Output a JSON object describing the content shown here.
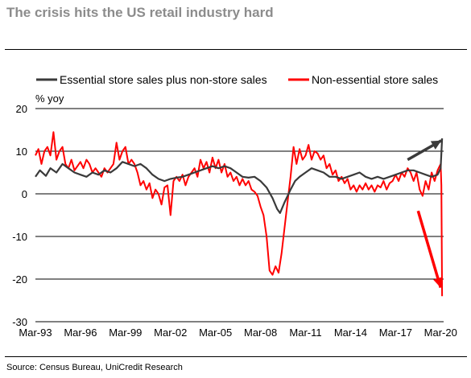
{
  "title": "The crisis hits the US retail industry hard",
  "source": "Source: Census Bureau, UniCredit Research",
  "colors": {
    "essential": "#3a3a3a",
    "non_essential": "#ff0000",
    "grid": "#000000"
  },
  "chart_data": {
    "type": "line",
    "ylabel": "% yoy",
    "ylim": [
      -30,
      20
    ],
    "yticks": [
      20,
      10,
      0,
      -10,
      -20,
      -30
    ],
    "xlim": [
      1993.0,
      2020.2
    ],
    "xticks": [
      {
        "x": 1993.0,
        "label": "Mar-93"
      },
      {
        "x": 1996.0,
        "label": "Mar-96"
      },
      {
        "x": 1999.0,
        "label": "Mar-99"
      },
      {
        "x": 2002.0,
        "label": "Mar-02"
      },
      {
        "x": 2005.0,
        "label": "Mar-05"
      },
      {
        "x": 2008.0,
        "label": "Mar-08"
      },
      {
        "x": 2011.0,
        "label": "Mar-11"
      },
      {
        "x": 2014.0,
        "label": "Mar-14"
      },
      {
        "x": 2017.0,
        "label": "Mar-17"
      },
      {
        "x": 2020.0,
        "label": "Mar-20"
      }
    ],
    "grid": "horizontal",
    "legend_position": "top",
    "series": [
      {
        "name": "Essential store sales plus non-store sales",
        "color": "#3a3a3a",
        "points": [
          [
            1993.0,
            4.0
          ],
          [
            1993.3,
            5.5
          ],
          [
            1993.7,
            4.2
          ],
          [
            1994.0,
            6.0
          ],
          [
            1994.4,
            5.0
          ],
          [
            1994.8,
            7.0
          ],
          [
            1995.2,
            6.0
          ],
          [
            1995.6,
            5.0
          ],
          [
            1996.0,
            4.5
          ],
          [
            1996.4,
            4.0
          ],
          [
            1996.8,
            5.0
          ],
          [
            1997.2,
            4.5
          ],
          [
            1997.6,
            5.5
          ],
          [
            1998.0,
            5.0
          ],
          [
            1998.4,
            6.0
          ],
          [
            1998.8,
            7.5
          ],
          [
            1999.2,
            7.0
          ],
          [
            1999.6,
            6.5
          ],
          [
            2000.0,
            7.0
          ],
          [
            2000.4,
            6.0
          ],
          [
            2000.8,
            4.5
          ],
          [
            2001.2,
            3.5
          ],
          [
            2001.6,
            3.0
          ],
          [
            2002.0,
            3.5
          ],
          [
            2002.4,
            3.8
          ],
          [
            2002.8,
            4.0
          ],
          [
            2003.2,
            4.5
          ],
          [
            2003.6,
            5.0
          ],
          [
            2004.0,
            5.5
          ],
          [
            2004.4,
            6.0
          ],
          [
            2004.8,
            6.5
          ],
          [
            2005.2,
            6.0
          ],
          [
            2005.6,
            6.5
          ],
          [
            2006.0,
            6.0
          ],
          [
            2006.4,
            5.0
          ],
          [
            2006.8,
            4.0
          ],
          [
            2007.2,
            3.8
          ],
          [
            2007.6,
            4.0
          ],
          [
            2008.0,
            3.0
          ],
          [
            2008.4,
            1.5
          ],
          [
            2008.8,
            -1.0
          ],
          [
            2009.1,
            -3.5
          ],
          [
            2009.3,
            -4.5
          ],
          [
            2009.6,
            -2.0
          ],
          [
            2010.0,
            1.0
          ],
          [
            2010.3,
            3.0
          ],
          [
            2010.6,
            4.0
          ],
          [
            2011.0,
            5.0
          ],
          [
            2011.4,
            6.0
          ],
          [
            2011.8,
            5.5
          ],
          [
            2012.2,
            5.0
          ],
          [
            2012.6,
            4.0
          ],
          [
            2013.0,
            4.0
          ],
          [
            2013.4,
            3.5
          ],
          [
            2013.8,
            4.0
          ],
          [
            2014.2,
            4.5
          ],
          [
            2014.6,
            5.0
          ],
          [
            2015.0,
            4.0
          ],
          [
            2015.4,
            3.5
          ],
          [
            2015.8,
            4.0
          ],
          [
            2016.2,
            3.5
          ],
          [
            2016.6,
            4.0
          ],
          [
            2017.0,
            4.5
          ],
          [
            2017.4,
            5.0
          ],
          [
            2017.8,
            5.5
          ],
          [
            2018.2,
            5.5
          ],
          [
            2018.6,
            5.0
          ],
          [
            2019.0,
            4.5
          ],
          [
            2019.4,
            4.0
          ],
          [
            2019.8,
            4.5
          ],
          [
            2020.0,
            6.0
          ],
          [
            2020.1,
            13.0
          ]
        ]
      },
      {
        "name": "Non-essential store sales",
        "color": "#ff0000",
        "points": [
          [
            1993.0,
            9.0
          ],
          [
            1993.2,
            10.5
          ],
          [
            1993.4,
            7.0
          ],
          [
            1993.6,
            10.0
          ],
          [
            1993.8,
            11.0
          ],
          [
            1994.0,
            9.0
          ],
          [
            1994.2,
            14.5
          ],
          [
            1994.4,
            8.0
          ],
          [
            1994.6,
            10.0
          ],
          [
            1994.8,
            11.0
          ],
          [
            1995.0,
            7.0
          ],
          [
            1995.2,
            6.0
          ],
          [
            1995.4,
            8.0
          ],
          [
            1995.6,
            5.5
          ],
          [
            1995.8,
            6.5
          ],
          [
            1996.0,
            7.5
          ],
          [
            1996.2,
            6.0
          ],
          [
            1996.4,
            8.0
          ],
          [
            1996.6,
            7.0
          ],
          [
            1996.8,
            5.0
          ],
          [
            1997.0,
            6.0
          ],
          [
            1997.2,
            5.0
          ],
          [
            1997.4,
            4.0
          ],
          [
            1997.6,
            6.0
          ],
          [
            1997.8,
            5.0
          ],
          [
            1998.0,
            6.0
          ],
          [
            1998.2,
            7.0
          ],
          [
            1998.4,
            12.0
          ],
          [
            1998.6,
            8.0
          ],
          [
            1998.8,
            10.0
          ],
          [
            1999.0,
            11.0
          ],
          [
            1999.2,
            7.0
          ],
          [
            1999.4,
            8.0
          ],
          [
            1999.6,
            7.0
          ],
          [
            1999.8,
            5.0
          ],
          [
            2000.0,
            2.0
          ],
          [
            2000.2,
            3.0
          ],
          [
            2000.4,
            1.0
          ],
          [
            2000.6,
            2.5
          ],
          [
            2000.8,
            -1.0
          ],
          [
            2001.0,
            1.0
          ],
          [
            2001.2,
            0.0
          ],
          [
            2001.4,
            -2.5
          ],
          [
            2001.6,
            1.5
          ],
          [
            2001.8,
            2.0
          ],
          [
            2002.0,
            -5.0
          ],
          [
            2002.2,
            3.0
          ],
          [
            2002.4,
            4.0
          ],
          [
            2002.6,
            3.0
          ],
          [
            2002.8,
            4.5
          ],
          [
            2003.0,
            2.0
          ],
          [
            2003.2,
            4.0
          ],
          [
            2003.4,
            5.0
          ],
          [
            2003.6,
            6.0
          ],
          [
            2003.8,
            4.0
          ],
          [
            2004.0,
            8.0
          ],
          [
            2004.2,
            6.0
          ],
          [
            2004.4,
            7.5
          ],
          [
            2004.6,
            5.0
          ],
          [
            2004.8,
            8.5
          ],
          [
            2005.0,
            6.0
          ],
          [
            2005.2,
            8.0
          ],
          [
            2005.4,
            5.0
          ],
          [
            2005.6,
            7.0
          ],
          [
            2005.8,
            4.0
          ],
          [
            2006.0,
            5.0
          ],
          [
            2006.2,
            3.0
          ],
          [
            2006.4,
            4.0
          ],
          [
            2006.6,
            2.0
          ],
          [
            2006.8,
            3.5
          ],
          [
            2007.0,
            2.0
          ],
          [
            2007.2,
            3.0
          ],
          [
            2007.4,
            1.0
          ],
          [
            2007.6,
            0.5
          ],
          [
            2007.8,
            -0.5
          ],
          [
            2008.0,
            -3.0
          ],
          [
            2008.2,
            -5.0
          ],
          [
            2008.4,
            -10.0
          ],
          [
            2008.6,
            -18.0
          ],
          [
            2008.8,
            -19.0
          ],
          [
            2009.0,
            -17.0
          ],
          [
            2009.2,
            -18.5
          ],
          [
            2009.4,
            -14.0
          ],
          [
            2009.6,
            -8.0
          ],
          [
            2009.8,
            -2.0
          ],
          [
            2010.0,
            4.0
          ],
          [
            2010.2,
            11.0
          ],
          [
            2010.4,
            7.0
          ],
          [
            2010.6,
            10.5
          ],
          [
            2010.8,
            8.0
          ],
          [
            2011.0,
            9.0
          ],
          [
            2011.2,
            11.5
          ],
          [
            2011.4,
            8.0
          ],
          [
            2011.6,
            10.0
          ],
          [
            2011.8,
            9.5
          ],
          [
            2012.0,
            8.0
          ],
          [
            2012.2,
            9.0
          ],
          [
            2012.4,
            6.0
          ],
          [
            2012.6,
            7.0
          ],
          [
            2012.8,
            4.5
          ],
          [
            2013.0,
            5.5
          ],
          [
            2013.2,
            3.0
          ],
          [
            2013.4,
            4.0
          ],
          [
            2013.6,
            2.5
          ],
          [
            2013.8,
            3.5
          ],
          [
            2014.0,
            1.0
          ],
          [
            2014.2,
            2.0
          ],
          [
            2014.4,
            0.5
          ],
          [
            2014.6,
            2.0
          ],
          [
            2014.8,
            1.0
          ],
          [
            2015.0,
            2.5
          ],
          [
            2015.2,
            1.0
          ],
          [
            2015.4,
            2.0
          ],
          [
            2015.6,
            0.5
          ],
          [
            2015.8,
            2.0
          ],
          [
            2016.0,
            1.5
          ],
          [
            2016.2,
            3.0
          ],
          [
            2016.4,
            1.0
          ],
          [
            2016.6,
            2.5
          ],
          [
            2016.8,
            3.0
          ],
          [
            2017.0,
            4.5
          ],
          [
            2017.2,
            3.0
          ],
          [
            2017.4,
            5.0
          ],
          [
            2017.6,
            4.0
          ],
          [
            2017.8,
            6.0
          ],
          [
            2018.0,
            5.0
          ],
          [
            2018.2,
            3.0
          ],
          [
            2018.4,
            5.0
          ],
          [
            2018.6,
            1.0
          ],
          [
            2018.8,
            -0.5
          ],
          [
            2019.0,
            3.0
          ],
          [
            2019.2,
            1.0
          ],
          [
            2019.4,
            5.0
          ],
          [
            2019.6,
            3.0
          ],
          [
            2019.8,
            5.5
          ],
          [
            2020.0,
            7.0
          ],
          [
            2020.05,
            2.0
          ],
          [
            2020.1,
            -24.0
          ]
        ]
      }
    ],
    "annotations": [
      {
        "type": "arrow",
        "color": "#3a3a3a",
        "from": [
          2017.8,
          8.0
        ],
        "to": [
          2020.05,
          12.5
        ]
      },
      {
        "type": "arrow",
        "color": "#ff0000",
        "from": [
          2018.5,
          -4.0
        ],
        "to": [
          2020.0,
          -22.0
        ]
      }
    ]
  }
}
